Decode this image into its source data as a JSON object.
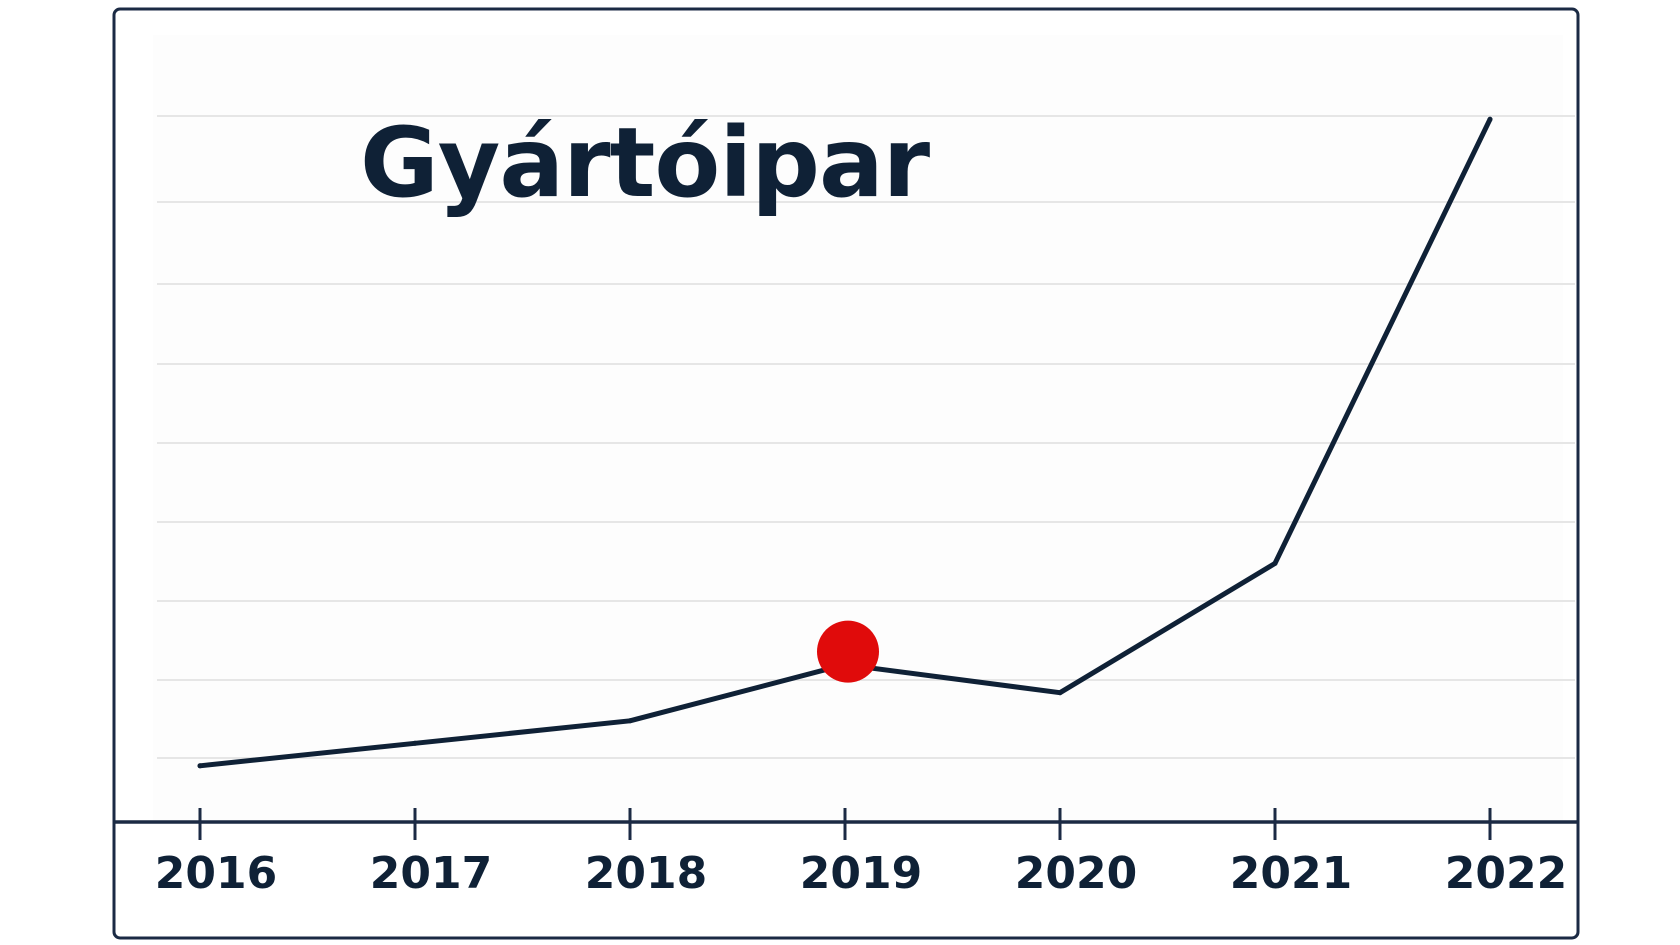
{
  "chart_data": {
    "type": "line",
    "title": "Gyártóipar",
    "xlabel": "",
    "ylabel": "",
    "x": [
      "2016",
      "2017",
      "2018",
      "2019",
      "2020",
      "2021",
      "2022"
    ],
    "series": [
      {
        "values": [
          1.0,
          1.8,
          2.6,
          4.6,
          3.6,
          8.2,
          24.0
        ]
      }
    ],
    "highlight": {
      "x": "2019",
      "value": 4.6,
      "color": "#e00b0b"
    },
    "ylim": [
      -1,
      27
    ],
    "grid": true,
    "y_tick_labels": false,
    "colors": {
      "line": "#0f2136",
      "frame": "#1b2a44",
      "grid": "#e6e6e6",
      "text": "#0f2136",
      "highlight": "#e00b0b"
    }
  }
}
